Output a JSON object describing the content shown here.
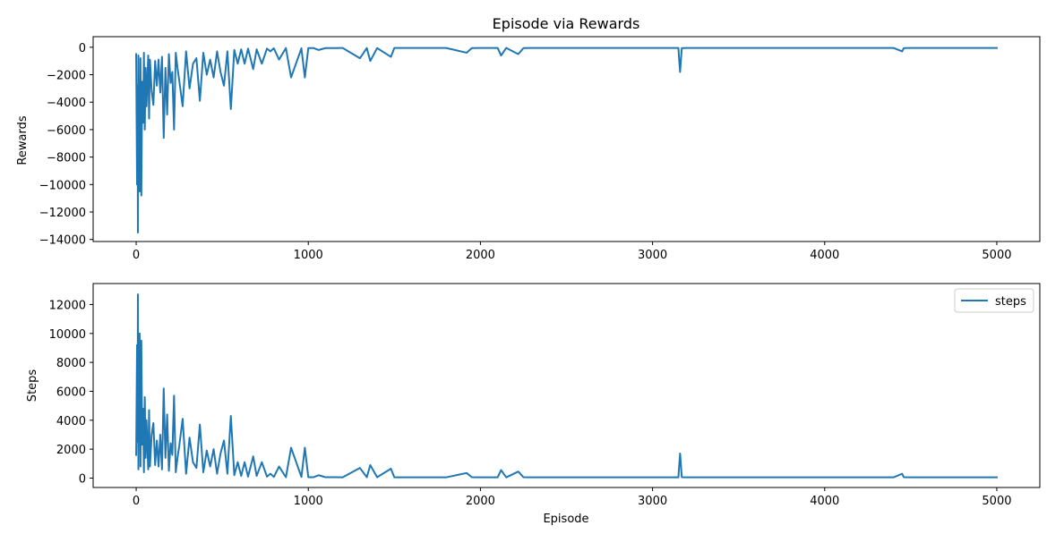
{
  "chart_data": [
    {
      "type": "line",
      "title": "Episode via Rewards",
      "xlabel": "",
      "ylabel": "Rewards",
      "xlim": [
        -250,
        5250
      ],
      "ylim": [
        -14150,
        770
      ],
      "xticks": [
        0,
        1000,
        2000,
        3000,
        4000,
        5000
      ],
      "yticks": [
        0,
        -2000,
        -4000,
        -6000,
        -8000,
        -10000,
        -12000,
        -14000
      ],
      "ytick_labels": [
        "0",
        "−2000",
        "−4000",
        "−6000",
        "−8000",
        "−10000",
        "−12000",
        "−14000"
      ],
      "grid": false,
      "legend": null,
      "series": [
        {
          "color": "#1f77b4",
          "x": [
            0,
            5,
            8,
            10,
            13,
            15,
            18,
            20,
            25,
            30,
            35,
            40,
            45,
            50,
            55,
            60,
            70,
            75,
            80,
            90,
            100,
            110,
            120,
            130,
            140,
            150,
            160,
            170,
            180,
            190,
            200,
            210,
            220,
            230,
            240,
            250,
            270,
            290,
            310,
            330,
            350,
            370,
            390,
            410,
            430,
            450,
            470,
            490,
            510,
            530,
            550,
            570,
            590,
            610,
            630,
            650,
            680,
            700,
            730,
            760,
            780,
            800,
            830,
            870,
            900,
            960,
            980,
            1000,
            1030,
            1060,
            1100,
            1150,
            1200,
            1300,
            1340,
            1360,
            1400,
            1480,
            1500,
            1600,
            1700,
            1800,
            1920,
            1950,
            2000,
            2100,
            2120,
            2150,
            2220,
            2250,
            2300,
            2400,
            2500,
            2600,
            2700,
            2800,
            2900,
            3000,
            3100,
            3150,
            3160,
            3170,
            3200,
            3300,
            3400,
            3500,
            3600,
            3700,
            3800,
            3900,
            4000,
            4100,
            4200,
            4300,
            4400,
            4450,
            4460,
            4500,
            4600,
            4700,
            4800,
            4900,
            5000
          ],
          "y": [
            -500,
            -10000,
            -2800,
            -13500,
            -600,
            -9000,
            -4500,
            -10500,
            -800,
            -10800,
            -2500,
            -5500,
            -400,
            -6000,
            -1500,
            -4300,
            -600,
            -5200,
            -900,
            -3200,
            -4200,
            -1000,
            -2800,
            -900,
            -3300,
            -700,
            -6600,
            -1500,
            -4900,
            -500,
            -2600,
            -1800,
            -6000,
            -400,
            -1500,
            -2400,
            -4300,
            -300,
            -3000,
            -1200,
            -800,
            -3900,
            -400,
            -2000,
            -900,
            -2200,
            -300,
            -1800,
            -2800,
            -300,
            -4500,
            -200,
            -1200,
            -150,
            -1200,
            -100,
            -1600,
            -150,
            -1200,
            -100,
            -300,
            -80,
            -900,
            -60,
            -2200,
            -80,
            -2200,
            -60,
            -60,
            -200,
            -60,
            -60,
            -50,
            -800,
            -60,
            -1000,
            -60,
            -700,
            -50,
            -50,
            -50,
            -50,
            -400,
            -60,
            -50,
            -50,
            -600,
            -50,
            -500,
            -60,
            -50,
            -50,
            -50,
            -50,
            -50,
            -50,
            -50,
            -50,
            -50,
            -50,
            -1800,
            -60,
            -50,
            -50,
            -50,
            -50,
            -50,
            -50,
            -50,
            -50,
            -50,
            -50,
            -50,
            -50,
            -50,
            -300,
            -60,
            -50,
            -50,
            -50,
            -50,
            -50,
            -50
          ]
        }
      ]
    },
    {
      "type": "line",
      "title": "",
      "xlabel": "Episode",
      "ylabel": "Steps",
      "xlim": [
        -250,
        5250
      ],
      "ylim": [
        -650,
        13450
      ],
      "xticks": [
        0,
        1000,
        2000,
        3000,
        4000,
        5000
      ],
      "yticks": [
        0,
        2000,
        4000,
        6000,
        8000,
        10000,
        12000
      ],
      "ytick_labels": [
        "0",
        "2000",
        "4000",
        "6000",
        "8000",
        "10000",
        "12000"
      ],
      "grid": false,
      "legend": "top-right",
      "series": [
        {
          "name": "steps",
          "color": "#1f77b4",
          "x": [
            0,
            5,
            8,
            10,
            13,
            15,
            18,
            20,
            25,
            30,
            35,
            40,
            45,
            50,
            55,
            60,
            70,
            75,
            80,
            90,
            100,
            110,
            120,
            130,
            140,
            150,
            160,
            170,
            180,
            190,
            200,
            210,
            220,
            230,
            240,
            250,
            270,
            290,
            310,
            330,
            350,
            370,
            390,
            410,
            430,
            450,
            470,
            490,
            510,
            530,
            550,
            570,
            590,
            610,
            630,
            650,
            680,
            700,
            730,
            760,
            780,
            800,
            830,
            870,
            900,
            960,
            980,
            1000,
            1030,
            1060,
            1100,
            1150,
            1200,
            1300,
            1340,
            1360,
            1400,
            1480,
            1500,
            1600,
            1700,
            1800,
            1920,
            1950,
            2000,
            2100,
            2120,
            2150,
            2220,
            2250,
            2300,
            2400,
            2500,
            2600,
            2700,
            2800,
            2900,
            3000,
            3100,
            3150,
            3160,
            3170,
            3200,
            3300,
            3400,
            3500,
            3600,
            3700,
            3800,
            3900,
            4000,
            4100,
            4200,
            4300,
            4400,
            4450,
            4460,
            4500,
            4600,
            4700,
            4800,
            4900,
            5000
          ],
          "y": [
            1600,
            9200,
            2500,
            12700,
            600,
            8500,
            4000,
            10000,
            800,
            9500,
            2300,
            4800,
            400,
            5600,
            1400,
            4000,
            600,
            4700,
            800,
            3000,
            3800,
            900,
            2600,
            800,
            3000,
            600,
            6200,
            1400,
            4400,
            500,
            2400,
            1600,
            5700,
            400,
            1400,
            2200,
            4100,
            300,
            2800,
            1100,
            700,
            3700,
            400,
            1900,
            800,
            2000,
            300,
            1700,
            2600,
            300,
            4300,
            200,
            1100,
            150,
            1100,
            100,
            1500,
            150,
            1100,
            100,
            300,
            80,
            800,
            60,
            2100,
            80,
            2100,
            60,
            60,
            200,
            60,
            60,
            50,
            700,
            60,
            900,
            60,
            650,
            50,
            50,
            50,
            50,
            350,
            60,
            50,
            50,
            550,
            50,
            450,
            60,
            50,
            50,
            50,
            50,
            50,
            50,
            50,
            50,
            50,
            50,
            1700,
            60,
            50,
            50,
            50,
            50,
            50,
            50,
            50,
            50,
            50,
            50,
            50,
            50,
            50,
            300,
            60,
            50,
            50,
            50,
            50,
            50,
            50
          ]
        }
      ]
    }
  ]
}
